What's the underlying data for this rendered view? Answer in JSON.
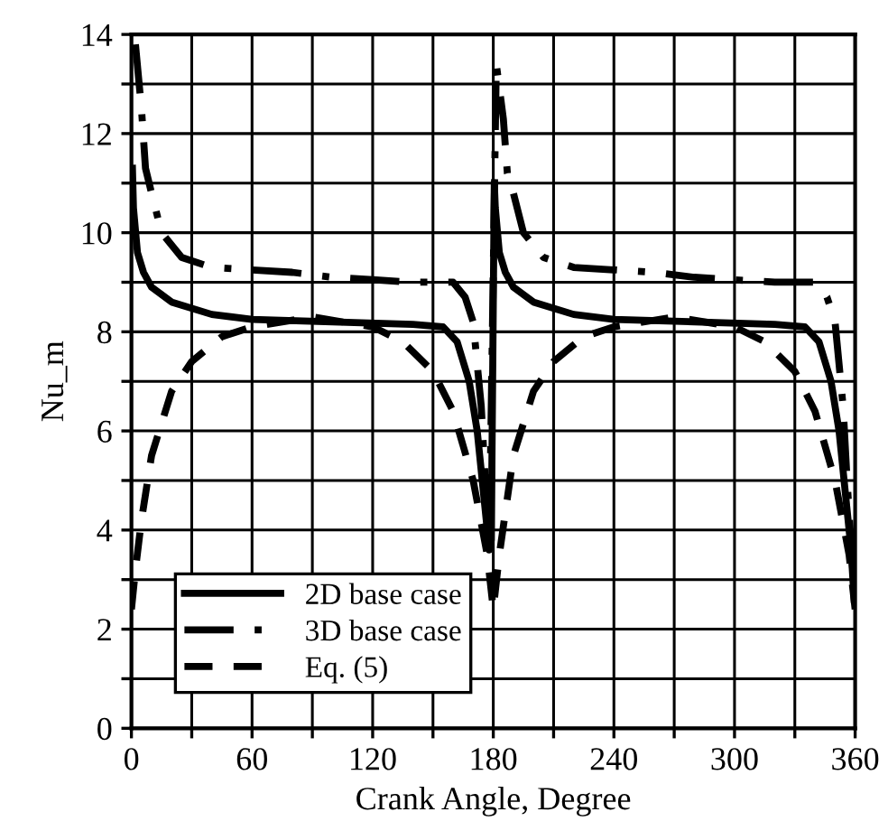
{
  "chart_data": {
    "type": "line",
    "xlabel": "Crank Angle, Degree",
    "ylabel": "Nu_m",
    "xlim": [
      0,
      360
    ],
    "ylim": [
      0,
      14
    ],
    "xticks": [
      0,
      {
        "value": 30,
        "label": null
      },
      60,
      {
        "value": 90,
        "label": null
      },
      120,
      {
        "value": 150,
        "label": null
      },
      180,
      {
        "value": 210,
        "label": null
      },
      240,
      {
        "value": 270,
        "label": null
      },
      300,
      {
        "value": 330,
        "label": null
      },
      360
    ],
    "yticks": [
      0,
      {
        "value": 1,
        "label": null
      },
      2,
      {
        "value": 3,
        "label": null
      },
      4,
      {
        "value": 5,
        "label": null
      },
      6,
      {
        "value": 7,
        "label": null
      },
      8,
      {
        "value": 9,
        "label": null
      },
      10,
      {
        "value": 11,
        "label": null
      },
      12,
      {
        "value": 13,
        "label": null
      },
      14
    ],
    "grid": true,
    "legend": "bottom left",
    "series": [
      {
        "name": "2D base case",
        "color": "#000000",
        "line_style": "solid",
        "x": [
          0.5,
          1,
          3,
          6,
          10,
          20,
          40,
          60,
          100,
          140,
          155,
          162,
          168,
          172,
          175,
          178,
          179,
          180.5,
          181,
          183,
          186,
          190,
          200,
          220,
          240,
          280,
          320,
          335,
          342,
          348,
          352,
          355,
          358,
          359.5
        ],
        "values": [
          11.3,
          10.5,
          9.6,
          9.2,
          8.9,
          8.6,
          8.35,
          8.25,
          8.2,
          8.15,
          8.1,
          7.8,
          7.0,
          6.0,
          4.8,
          3.6,
          3.8,
          11.0,
          10.5,
          9.6,
          9.2,
          8.9,
          8.6,
          8.35,
          8.25,
          8.2,
          8.15,
          8.1,
          7.8,
          7.0,
          6.0,
          4.8,
          3.6,
          2.6
        ]
      },
      {
        "name": "3D base case",
        "color": "#000000",
        "line_style": "dashdot",
        "x": [
          2,
          5,
          7,
          10,
          15,
          25,
          40,
          60,
          80,
          100,
          120,
          140,
          160,
          166,
          170,
          174,
          176,
          178,
          181.5,
          185,
          187,
          190,
          195,
          205,
          220,
          240,
          260,
          280,
          300,
          320,
          340,
          346,
          350,
          354,
          356,
          358,
          359.5
        ],
        "values": [
          13.8,
          12.5,
          11.3,
          10.8,
          10.0,
          9.5,
          9.3,
          9.25,
          9.2,
          9.1,
          9.05,
          9.0,
          9.0,
          8.7,
          8.2,
          6.5,
          5.0,
          3.7,
          13.4,
          12.3,
          11.2,
          10.8,
          10.0,
          9.5,
          9.3,
          9.25,
          9.2,
          9.1,
          9.05,
          9.0,
          9.0,
          8.7,
          8.2,
          6.5,
          5.0,
          3.7,
          2.8
        ]
      },
      {
        "name": "Eq. (5)",
        "color": "#000000",
        "line_style": "dashed",
        "x": [
          0,
          2,
          5,
          10,
          20,
          30,
          45,
          60,
          90,
          120,
          135,
          150,
          160,
          170,
          177,
          180,
          183,
          190,
          200,
          210,
          225,
          240,
          270,
          300,
          315,
          330,
          340,
          350,
          357,
          360
        ],
        "values": [
          2.4,
          3.2,
          4.2,
          5.5,
          6.8,
          7.4,
          7.9,
          8.1,
          8.3,
          8.1,
          7.8,
          7.2,
          6.4,
          5.0,
          3.5,
          2.4,
          3.5,
          5.5,
          6.8,
          7.4,
          7.9,
          8.1,
          8.3,
          8.1,
          7.8,
          7.2,
          6.4,
          5.0,
          3.5,
          2.4
        ]
      }
    ]
  }
}
